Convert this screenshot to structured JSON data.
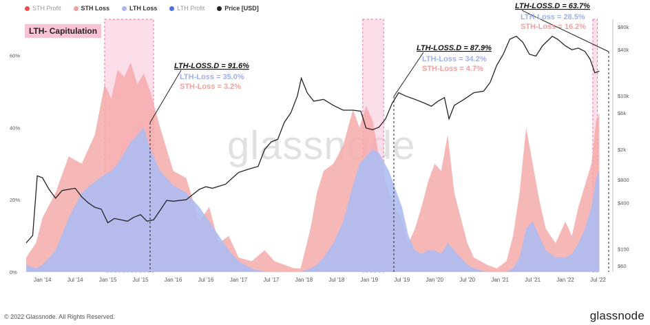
{
  "legend": [
    {
      "label": "STH Profit",
      "color": "#ef4c4c",
      "style": "dim"
    },
    {
      "label": "STH Loss",
      "color": "#f2a0a0",
      "style": "bold"
    },
    {
      "label": "LTH Loss",
      "color": "#aab4ea",
      "style": "bold"
    },
    {
      "label": "LTH Profit",
      "color": "#4f6ee0",
      "style": "dim"
    },
    {
      "label": "Price [USD]",
      "color": "#222222",
      "style": "bold"
    }
  ],
  "title_box": "LTH- Capitulation",
  "watermark": "glassnode",
  "footer": {
    "copyright": "© 2022 Glassnode. All Rights Reserved.",
    "logo": "glassnode"
  },
  "colors": {
    "sth_loss": "#f4aaaa",
    "lth_loss": "#aebcf2",
    "highlight": "#f9c3d8",
    "price": "#222222",
    "annotation_main": "#111111",
    "annotation_lth": "#9fb0ec",
    "annotation_sth": "#f2a0a0"
  },
  "annotations": [
    {
      "main": "LTH-LOSS.D = 91.6%",
      "lth": "LTH-Loss = 35.0%",
      "sth": "STH-Loss = 3.2%"
    },
    {
      "main": "LTH-LOSS.D = 87.9%",
      "lth": "LTH-Loss = 34.2%",
      "sth": "STH-Loss = 4.7%"
    },
    {
      "main": "LTH-LOSS.D = 63.7%",
      "lth": "LTH-Loss = 28.5%",
      "sth": "STH-Loss = 16.2%"
    }
  ],
  "chart_data": {
    "type": "area",
    "title": "LTH- Capitulation",
    "x_ticks": [
      "Jan '14",
      "Jul '14",
      "Jan '15",
      "Jul '15",
      "Jan '16",
      "Jul '16",
      "Jan '17",
      "Jul '17",
      "Jan '18",
      "Jul '18",
      "Jan '19",
      "Jul '19",
      "Jan '20",
      "Jul '20",
      "Jan '21",
      "Jul '21",
      "Jan '22",
      "Jul '22"
    ],
    "x_tick_years": [
      2014,
      2014.5,
      2015,
      2015.5,
      2016,
      2016.5,
      2017,
      2017.5,
      2018,
      2018.5,
      2019,
      2019.5,
      2020,
      2020.5,
      2021,
      2021.5,
      2022,
      2022.5
    ],
    "xlim": [
      2013.75,
      2022.6
    ],
    "left_axis": {
      "ticks": [
        "0%",
        "20%",
        "40%",
        "60%"
      ],
      "values": [
        0,
        20,
        40,
        60
      ],
      "ylim": [
        0,
        70
      ]
    },
    "right_axis": {
      "ticks": [
        "$60",
        "$100",
        "$400",
        "$800",
        "$2k",
        "$6k",
        "$10k",
        "$40k",
        "$80k"
      ],
      "values": [
        60,
        100,
        400,
        800,
        2000,
        6000,
        10000,
        40000,
        80000
      ],
      "scale": "log",
      "ylim": [
        50,
        100000
      ]
    },
    "highlight_ranges": [
      [
        2014.95,
        2015.7
      ],
      [
        2018.9,
        2019.22
      ],
      [
        2022.42,
        2022.49
      ]
    ],
    "series": [
      {
        "name": "STH Loss",
        "axis": "left",
        "x": [
          2013.75,
          2013.9,
          2014.0,
          2014.2,
          2014.4,
          2014.6,
          2014.8,
          2014.95,
          2015.05,
          2015.15,
          2015.25,
          2015.35,
          2015.45,
          2015.55,
          2015.65,
          2015.8,
          2016.0,
          2016.2,
          2016.4,
          2016.55,
          2016.7,
          2016.85,
          2017.0,
          2017.2,
          2017.4,
          2017.55,
          2017.7,
          2017.85,
          2017.95,
          2018.1,
          2018.2,
          2018.3,
          2018.45,
          2018.6,
          2018.75,
          2018.85,
          2018.95,
          2019.05,
          2019.15,
          2019.3,
          2019.5,
          2019.6,
          2019.7,
          2019.8,
          2019.9,
          2020.0,
          2020.1,
          2020.2,
          2020.3,
          2020.4,
          2020.5,
          2020.6,
          2020.8,
          2020.95,
          2021.1,
          2021.2,
          2021.3,
          2021.4,
          2021.5,
          2021.6,
          2021.7,
          2021.85,
          2022.0,
          2022.1,
          2022.2,
          2022.3,
          2022.4,
          2022.47,
          2022.52
        ],
        "y": [
          4,
          8,
          15,
          22,
          32,
          30,
          38,
          52,
          48,
          56,
          54,
          58,
          52,
          55,
          50,
          40,
          28,
          26,
          14,
          18,
          8,
          10,
          4,
          3,
          6,
          3,
          2,
          1,
          1,
          12,
          22,
          28,
          30,
          35,
          45,
          40,
          46,
          42,
          32,
          22,
          14,
          8,
          12,
          18,
          25,
          30,
          28,
          38,
          22,
          15,
          8,
          4,
          2,
          1,
          3,
          10,
          22,
          40,
          30,
          20,
          12,
          8,
          14,
          10,
          18,
          24,
          30,
          42,
          44
        ]
      },
      {
        "name": "LTH Loss",
        "axis": "left",
        "x": [
          2013.75,
          2013.9,
          2014.0,
          2014.2,
          2014.4,
          2014.6,
          2014.8,
          2014.95,
          2015.05,
          2015.15,
          2015.25,
          2015.35,
          2015.45,
          2015.55,
          2015.65,
          2015.8,
          2016.0,
          2016.2,
          2016.4,
          2016.55,
          2016.7,
          2016.85,
          2017.0,
          2017.2,
          2017.4,
          2017.55,
          2017.7,
          2017.85,
          2017.95,
          2018.1,
          2018.2,
          2018.3,
          2018.45,
          2018.6,
          2018.75,
          2018.85,
          2018.95,
          2019.05,
          2019.15,
          2019.3,
          2019.5,
          2019.6,
          2019.7,
          2019.8,
          2019.9,
          2020.0,
          2020.1,
          2020.2,
          2020.3,
          2020.4,
          2020.5,
          2020.6,
          2020.8,
          2020.95,
          2021.1,
          2021.2,
          2021.3,
          2021.4,
          2021.5,
          2021.6,
          2021.7,
          2021.85,
          2022.0,
          2022.1,
          2022.2,
          2022.3,
          2022.4,
          2022.47,
          2022.52
        ],
        "y": [
          2,
          1,
          2,
          6,
          15,
          22,
          25,
          27,
          28,
          30,
          33,
          36,
          38,
          40,
          34,
          28,
          24,
          22,
          18,
          14,
          10,
          6,
          3,
          1,
          0,
          0,
          0,
          0,
          0,
          1,
          2,
          4,
          8,
          14,
          24,
          30,
          32,
          34,
          33,
          28,
          18,
          10,
          6,
          5,
          6,
          6,
          5,
          8,
          6,
          4,
          2,
          1,
          0,
          0,
          0,
          1,
          4,
          12,
          14,
          10,
          6,
          4,
          4,
          5,
          8,
          12,
          18,
          26,
          28
        ]
      },
      {
        "name": "Price [USD]",
        "axis": "right",
        "x": [
          2013.75,
          2013.85,
          2013.92,
          2014.0,
          2014.1,
          2014.2,
          2014.3,
          2014.4,
          2014.5,
          2014.6,
          2014.7,
          2014.8,
          2014.9,
          2015.0,
          2015.1,
          2015.2,
          2015.3,
          2015.4,
          2015.5,
          2015.6,
          2015.7,
          2015.8,
          2015.9,
          2016.0,
          2016.2,
          2016.4,
          2016.5,
          2016.6,
          2016.8,
          2017.0,
          2017.15,
          2017.3,
          2017.4,
          2017.5,
          2017.6,
          2017.7,
          2017.8,
          2017.9,
          2017.96,
          2018.05,
          2018.15,
          2018.3,
          2018.45,
          2018.6,
          2018.75,
          2018.87,
          2018.95,
          2019.05,
          2019.15,
          2019.25,
          2019.35,
          2019.45,
          2019.55,
          2019.7,
          2019.85,
          2019.95,
          2020.05,
          2020.15,
          2020.22,
          2020.3,
          2020.45,
          2020.6,
          2020.75,
          2020.85,
          2020.95,
          2021.05,
          2021.15,
          2021.25,
          2021.35,
          2021.45,
          2021.55,
          2021.65,
          2021.8,
          2021.88,
          2022.0,
          2022.1,
          2022.2,
          2022.3,
          2022.38,
          2022.45,
          2022.52
        ],
        "y": [
          120,
          150,
          900,
          850,
          600,
          460,
          580,
          600,
          620,
          480,
          400,
          350,
          330,
          220,
          250,
          240,
          230,
          260,
          280,
          230,
          240,
          320,
          430,
          420,
          440,
          600,
          650,
          620,
          700,
          1000,
          1100,
          1200,
          2000,
          2500,
          2700,
          4500,
          6000,
          10000,
          17000,
          11000,
          8500,
          9000,
          7500,
          6500,
          6500,
          6300,
          3800,
          3600,
          3900,
          5000,
          8000,
          11000,
          10000,
          9000,
          8000,
          7300,
          8500,
          9500,
          5000,
          7500,
          9000,
          11000,
          11500,
          15000,
          25000,
          35000,
          55000,
          60000,
          50000,
          35000,
          33000,
          45000,
          60000,
          55000,
          45000,
          40000,
          42000,
          38000,
          30000,
          20000,
          21000
        ]
      }
    ]
  }
}
